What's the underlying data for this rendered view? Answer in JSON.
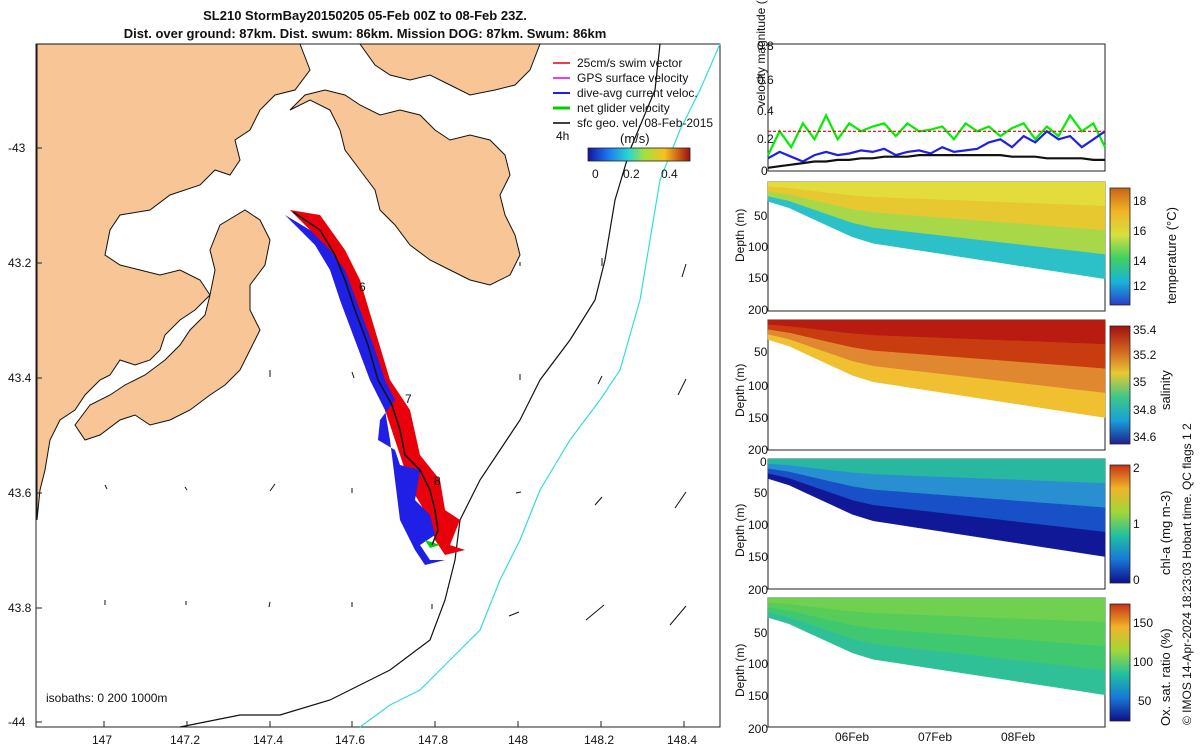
{
  "title_line1": "SL210 StormBay20150205 05-Feb 00Z to 08-Feb 23Z.",
  "title_line2": "Dist. over ground: 87km. Dist. swum: 86km. Mission DOG: 87km. Swum: 86km",
  "map": {
    "legend": [
      {
        "label": "25cm/s swim vector",
        "color": "#e8000b"
      },
      {
        "label": "GPS surface velocity",
        "color": "#e000e0"
      },
      {
        "label": "dive-avg current veloc.",
        "color": "#1f1fe6"
      },
      {
        "label": "net glider velocity",
        "color": "#00d000"
      },
      {
        "label": "sfc geo. vel. 08-Feb-2015",
        "color": "#000000"
      }
    ],
    "time_label": "4h",
    "colorbar_unit": "(m/s)",
    "colorbar_ticks": [
      "0",
      "0.2",
      "0.4"
    ],
    "isobaths": "isobaths: 0   200  1000m",
    "ylabels": [
      "-43",
      "43.2",
      "43.4",
      "43.6",
      "43.8",
      "-44"
    ],
    "xlabels": [
      "147",
      "147.2",
      "147.4",
      "147.6",
      "147.8",
      "148",
      "148.2",
      "148.4"
    ],
    "day_markers": [
      "6",
      "7",
      "8"
    ],
    "land_color": "#f8c596"
  },
  "chart_data": [
    {
      "type": "line",
      "ylabel": "velocity magnitude (m/s)",
      "ylim": [
        0,
        0.8
      ],
      "yticks": [
        "0",
        "0.2",
        "0.4",
        "0.6",
        "0.8"
      ],
      "series": [
        {
          "color": "#00ee00",
          "values": [
            0.1,
            0.25,
            0.15,
            0.3,
            0.2,
            0.35,
            0.2,
            0.3,
            0.25,
            0.28,
            0.3,
            0.22,
            0.3,
            0.25,
            0.26,
            0.28,
            0.2,
            0.3,
            0.25,
            0.28,
            0.22,
            0.27,
            0.3,
            0.2,
            0.28,
            0.22,
            0.35,
            0.25,
            0.3,
            0.15
          ]
        },
        {
          "color": "#1f1fe6",
          "values": [
            0.08,
            0.12,
            0.09,
            0.06,
            0.1,
            0.12,
            0.1,
            0.11,
            0.13,
            0.12,
            0.14,
            0.1,
            0.12,
            0.13,
            0.11,
            0.15,
            0.12,
            0.13,
            0.14,
            0.18,
            0.2,
            0.15,
            0.22,
            0.18,
            0.25,
            0.2,
            0.22,
            0.15,
            0.2,
            0.25
          ]
        },
        {
          "color": "#111111",
          "values": [
            0.02,
            0.03,
            0.04,
            0.05,
            0.06,
            0.06,
            0.07,
            0.07,
            0.08,
            0.08,
            0.09,
            0.09,
            0.09,
            0.1,
            0.1,
            0.1,
            0.1,
            0.1,
            0.1,
            0.1,
            0.1,
            0.09,
            0.09,
            0.09,
            0.08,
            0.08,
            0.08,
            0.08,
            0.07,
            0.07
          ]
        },
        {
          "color": "#e8000b",
          "dashed": true,
          "values": [
            0.25,
            0.25,
            0.25,
            0.25,
            0.25,
            0.25,
            0.25,
            0.25,
            0.25,
            0.25,
            0.25,
            0.25,
            0.25,
            0.25,
            0.25,
            0.25,
            0.25,
            0.25,
            0.25,
            0.25,
            0.25,
            0.25,
            0.25,
            0.25,
            0.25,
            0.25,
            0.25,
            0.25,
            0.25,
            0.25
          ]
        }
      ]
    },
    {
      "type": "heatmap",
      "ylabel": "Depth (m)",
      "cblabel": "temperature (°C)",
      "yticks": [
        "0",
        "50",
        "100",
        "150",
        "200"
      ],
      "cbticks": [
        "18",
        "16",
        "14",
        "12"
      ],
      "cbcolors": [
        "#c86414",
        "#f0b428",
        "#d8e040",
        "#40d060",
        "#18b4d8",
        "#2840c8"
      ],
      "bands": [
        "#e2dc3c",
        "#e8c830",
        "#a8d848",
        "#2cc0c8"
      ],
      "bottom_depth": [
        30,
        40,
        55,
        70,
        85,
        95,
        100,
        105,
        110,
        115,
        120,
        125,
        130,
        135,
        140,
        145,
        150
      ]
    },
    {
      "type": "heatmap",
      "ylabel": "Depth (m)",
      "cblabel": "salinity",
      "yticks": [
        "0",
        "50",
        "100",
        "150",
        "200"
      ],
      "cbticks": [
        "35.4",
        "35.2",
        "35",
        "34.8",
        "34.6"
      ],
      "cbcolors": [
        "#a01010",
        "#d06020",
        "#e8c830",
        "#40c888",
        "#18a0d8",
        "#202090"
      ],
      "bands": [
        "#b81c10",
        "#c83c10",
        "#e08830",
        "#f0c030"
      ],
      "bottom_depth": [
        30,
        40,
        55,
        70,
        85,
        95,
        100,
        105,
        110,
        115,
        120,
        125,
        130,
        135,
        140,
        145,
        150
      ]
    },
    {
      "type": "heatmap",
      "ylabel": "Depth (m)",
      "cblabel": "chl-a (mg m-3)",
      "yticks": [
        "0",
        "50",
        "100",
        "150",
        "200"
      ],
      "cbticks": [
        "2",
        "1",
        "0"
      ],
      "cbcolors": [
        "#c83218",
        "#f0b428",
        "#a0d838",
        "#20c0a0",
        "#1878d8",
        "#101088"
      ],
      "bands": [
        "#28b8a0",
        "#2890d0",
        "#1850c8",
        "#101898"
      ],
      "bottom_depth": [
        30,
        40,
        55,
        70,
        85,
        95,
        100,
        105,
        110,
        115,
        120,
        125,
        130,
        135,
        140,
        145,
        150
      ]
    },
    {
      "type": "heatmap",
      "ylabel": "Depth (m)",
      "cblabel": "Ox. sat. ratio (%)",
      "yticks": [
        "0",
        "50",
        "100",
        "150",
        "200"
      ],
      "xticks": [
        "06Feb",
        "07Feb",
        "08Feb"
      ],
      "cbticks": [
        "150",
        "100",
        "50"
      ],
      "cbcolors": [
        "#c83218",
        "#f0b428",
        "#a0d838",
        "#20c0a0",
        "#1878d8",
        "#101088"
      ],
      "bands": [
        "#70d050",
        "#58cc58",
        "#40c870",
        "#30c098"
      ],
      "bottom_depth": [
        30,
        40,
        55,
        70,
        85,
        95,
        100,
        105,
        110,
        115,
        120,
        125,
        130,
        135,
        140,
        145,
        150
      ]
    }
  ],
  "watermark": "© IMOS 14-Apr-2024 18:23:03 Hobart time. QC flags 1  2"
}
